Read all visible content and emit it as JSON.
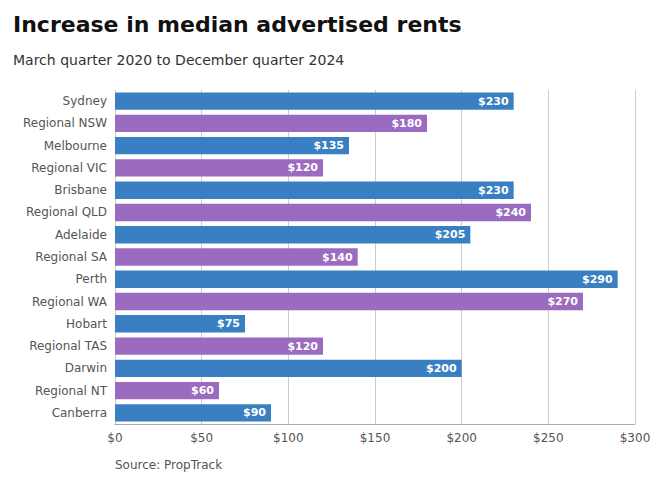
{
  "chart_data": {
    "type": "bar",
    "orientation": "horizontal",
    "title": "Increase in median advertised rents",
    "subtitle": "March quarter 2020 to December quarter 2024",
    "annotations": [
      "Source: PropTrack"
    ],
    "categories": [
      "Sydney",
      "Regional NSW",
      "Melbourne",
      "Regional VIC",
      "Brisbane",
      "Regional QLD",
      "Adelaide",
      "Regional SA",
      "Perth",
      "Regional WA",
      "Hobart",
      "Regional TAS",
      "Darwin",
      "Regional NT",
      "Canberra"
    ],
    "values": [
      230,
      180,
      135,
      120,
      230,
      240,
      205,
      140,
      290,
      270,
      75,
      120,
      200,
      60,
      90
    ],
    "value_labels": [
      "$230",
      "$180",
      "$135",
      "$120",
      "$230",
      "$240",
      "$205",
      "$140",
      "$290",
      "$270",
      "$75",
      "$120",
      "$200",
      "$60",
      "$90"
    ],
    "colors": [
      "#3a7fc1",
      "#9b6bbf",
      "#3a7fc1",
      "#9b6bbf",
      "#3a7fc1",
      "#9b6bbf",
      "#3a7fc1",
      "#9b6bbf",
      "#3a7fc1",
      "#9b6bbf",
      "#3a7fc1",
      "#9b6bbf",
      "#3a7fc1",
      "#9b6bbf",
      "#3a7fc1"
    ],
    "xlim": [
      0,
      300
    ],
    "xticks": [
      {
        "value": 0,
        "label": "$0"
      },
      {
        "value": 50,
        "label": "$50"
      },
      {
        "value": 100,
        "label": "$100"
      },
      {
        "value": 150,
        "label": "$150"
      },
      {
        "value": 200,
        "label": "$200"
      },
      {
        "value": 250,
        "label": "$250"
      },
      {
        "value": 300,
        "label": "$300"
      }
    ],
    "grid": true,
    "data_labels": true
  }
}
